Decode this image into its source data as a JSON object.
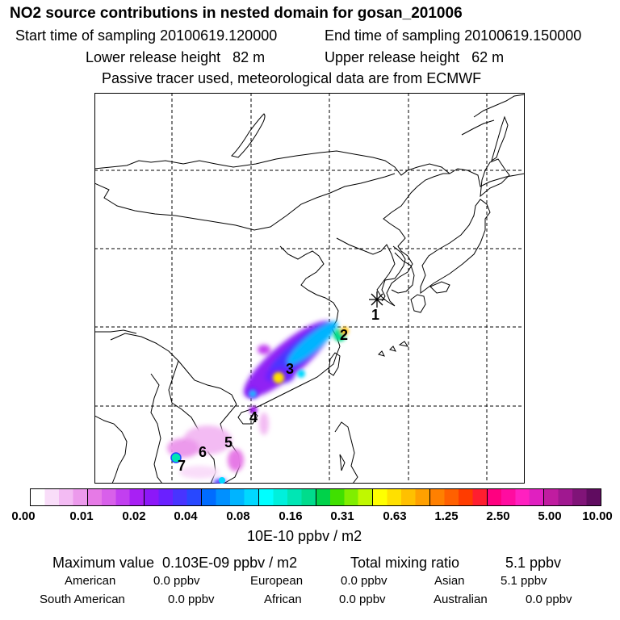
{
  "header": {
    "title": "NO2 source contributions in nested domain for gosan_201006",
    "start_label": "Start time of sampling 20100619.120000",
    "end_label": "End time of sampling 20100619.150000",
    "lower_label": "Lower release height   82 m",
    "upper_label": "Upper release height   62 m",
    "tracer_label": "Passive tracer used, meteorological data are from ECMWF"
  },
  "map": {
    "receptor_marker": "star-icon",
    "region_labels": [
      "1",
      "2",
      "3",
      "4",
      "5",
      "6",
      "7"
    ]
  },
  "colorbar": {
    "ticks": [
      "0.00",
      "0.01",
      "0.02",
      "0.04",
      "0.08",
      "0.16",
      "0.31",
      "0.63",
      "1.25",
      "2.50",
      "5.00",
      "10.00"
    ],
    "units": "10E-10 ppbv / m2",
    "colors": [
      [
        "#ffffff",
        "#f9ddf9",
        "#f3bbf3",
        "#ec9aec"
      ],
      [
        "#e67ae6",
        "#d860ea",
        "#c23ff0",
        "#a820f4"
      ],
      [
        "#8c18f8",
        "#6a20ff",
        "#4834ff",
        "#2848ff"
      ],
      [
        "#006cff",
        "#0090ff",
        "#00b4ff",
        "#00d8ff"
      ],
      [
        "#00ffff",
        "#00f0dc",
        "#00e6b4",
        "#00dc8c"
      ],
      [
        "#00d24a",
        "#40e000",
        "#80ee00",
        "#c0f800"
      ],
      [
        "#ffff00",
        "#ffe000",
        "#ffc000",
        "#ffa000"
      ],
      [
        "#ff8000",
        "#ff6000",
        "#ff3c00",
        "#ff1e30"
      ],
      [
        "#ff0080",
        "#ff0ca0",
        "#ff20c0",
        "#e020c0"
      ],
      [
        "#c01ca0",
        "#a01890",
        "#801478",
        "#600c60"
      ]
    ]
  },
  "stats": {
    "max_label": "Maximum value  0.103E-09 ppbv / m2",
    "total_label": "Total mixing ratio",
    "total_value": "5.1 ppbv",
    "american_label": "American",
    "american_value": "0.0 ppbv",
    "european_label": "European",
    "european_value": "0.0 ppbv",
    "asian_label": "Asian",
    "asian_value": "5.1 ppbv",
    "south_american_label": "South American",
    "south_american_value": "0.0 ppbv",
    "african_label": "African",
    "african_value": "0.0 ppbv",
    "australian_label": "Australian",
    "australian_value": "0.0 ppbv"
  }
}
